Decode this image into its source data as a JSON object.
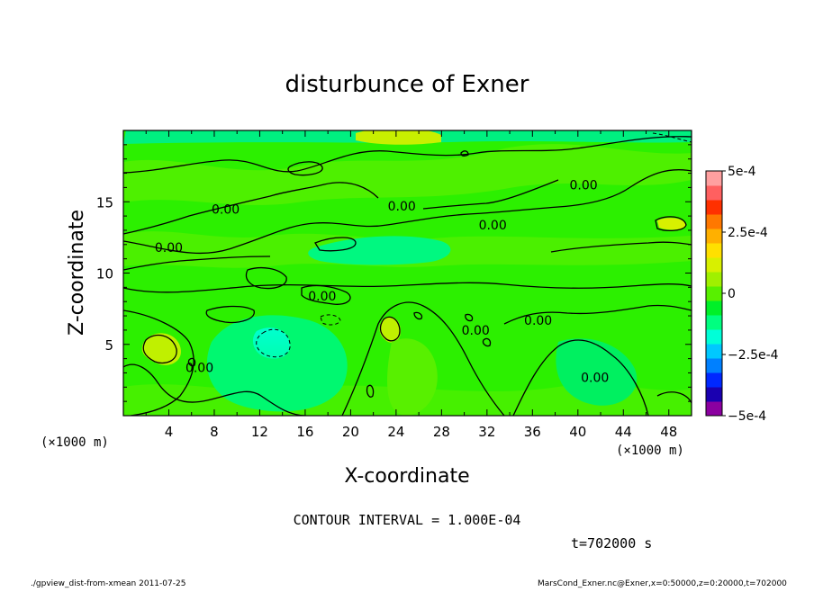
{
  "chart_data": {
    "type": "heatmap",
    "title": "disturbunce of Exner",
    "xlabel": "X-coordinate",
    "ylabel": "Z-coordinate",
    "x_unit_left": "(×1000 m)",
    "x_unit_right": "(×1000 m)",
    "x_ticks": [
      "4",
      "8",
      "12",
      "16",
      "20",
      "24",
      "28",
      "32",
      "36",
      "40",
      "44",
      "48"
    ],
    "x_tick_values": [
      4,
      8,
      12,
      16,
      20,
      24,
      28,
      32,
      36,
      40,
      44,
      48
    ],
    "y_ticks": [
      "5",
      "10",
      "15"
    ],
    "y_tick_values": [
      5,
      10,
      15
    ],
    "xlim": [
      0,
      50
    ],
    "ylim": [
      0,
      20
    ],
    "colorbar": {
      "min": -0.0005,
      "max": 0.0005,
      "labels": [
        "5e-4",
        "2.5e-4",
        "0",
        "−2.5e-4",
        "−5e-4"
      ],
      "label_values": [
        0.0005,
        0.00025,
        0,
        -0.00025,
        -0.0005
      ],
      "colors": [
        "#8b00a0",
        "#1a00b0",
        "#0028ff",
        "#0080ff",
        "#00c8ff",
        "#00ffd8",
        "#00ff80",
        "#00f028",
        "#58f000",
        "#a0f000",
        "#d8f000",
        "#ffe000",
        "#ffb000",
        "#ff7800",
        "#ff3000",
        "#ff6060",
        "#ffa0a0"
      ]
    },
    "contour_labels": [
      {
        "text": "0.00",
        "x": 9,
        "z": 14.3
      },
      {
        "text": "0.00",
        "x": 4,
        "z": 11.6
      },
      {
        "text": "0.00",
        "x": 24.5,
        "z": 14.5
      },
      {
        "text": "0.00",
        "x": 32.5,
        "z": 13.2
      },
      {
        "text": "0.00",
        "x": 40.5,
        "z": 16
      },
      {
        "text": "0.00",
        "x": 17.5,
        "z": 8.2
      },
      {
        "text": "0.00",
        "x": 36.5,
        "z": 6.5
      },
      {
        "text": "0.00",
        "x": 6.7,
        "z": 3.2
      },
      {
        "text": "0.00",
        "x": 31,
        "z": 5.8
      },
      {
        "text": "0.00",
        "x": 41.5,
        "z": 2.5
      }
    ],
    "annotations": {
      "contour_interval": "CONTOUR INTERVAL = 1.000E-04",
      "time": "t=702000 s",
      "footer_left": "./gpview_dist-from-xmean  2011-07-25",
      "footer_right": "MarsCond_Exner.nc@Exner,x=0:50000,z=0:20000,t=702000"
    }
  }
}
